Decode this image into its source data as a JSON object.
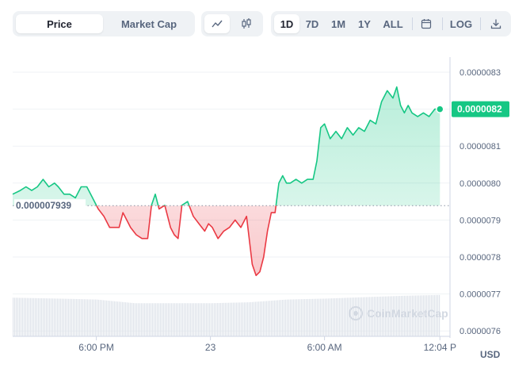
{
  "toolbar": {
    "price_tab": "Price",
    "market_cap_tab": "Market Cap",
    "chart_type_icons": [
      "line-chart-icon",
      "candlestick-icon"
    ],
    "ranges": [
      "1D",
      "7D",
      "1M",
      "1Y",
      "ALL"
    ],
    "active_range": "1D",
    "calendar_icon": "calendar-icon",
    "log_label": "LOG",
    "download_icon": "download-icon"
  },
  "watermark": "CoinMarketCap",
  "currency_label": "USD",
  "colors": {
    "up": "#16c784",
    "down": "#ea3943",
    "accent": "#16c784"
  },
  "chart_data": {
    "type": "line",
    "baseline_label": "0.000007939",
    "baseline": 7.939e-06,
    "last_price_label": "0.0000082",
    "last_price": 8.2e-06,
    "y_ticks": [
      "0.0000083",
      "0.0000082",
      "0.0000081",
      "0.0000080",
      "0.0000079",
      "0.0000078",
      "0.0000077",
      "0.0000076"
    ],
    "ylim": [
      7.56e-06,
      8.35e-06
    ],
    "x_ticks": [
      "6:00 PM",
      "23",
      "6:00 AM",
      "12:04 P"
    ],
    "x_tick_hours": [
      18,
      24,
      30,
      36.07
    ],
    "xlim": [
      13.6,
      36.6
    ],
    "grid": true,
    "price_series": {
      "x": [
        13.6,
        14.0,
        14.3,
        14.6,
        14.9,
        15.2,
        15.5,
        15.8,
        16.0,
        16.3,
        16.6,
        16.9,
        17.2,
        17.5,
        17.8,
        18.1,
        18.4,
        18.7,
        19.0,
        19.2,
        19.4,
        19.6,
        19.8,
        20.1,
        20.4,
        20.7,
        20.9,
        21.1,
        21.3,
        21.6,
        21.9,
        22.1,
        22.3,
        22.5,
        22.8,
        23.1,
        23.4,
        23.7,
        23.9,
        24.1,
        24.4,
        24.7,
        25.0,
        25.3,
        25.6,
        25.9,
        26.2,
        26.4,
        26.6,
        26.8,
        27.0,
        27.2,
        27.4,
        27.6,
        27.8,
        28.0,
        28.2,
        28.5,
        28.8,
        29.1,
        29.4,
        29.6,
        29.8,
        30.0,
        30.3,
        30.6,
        30.9,
        31.2,
        31.5,
        31.8,
        32.1,
        32.4,
        32.7,
        33.0,
        33.3,
        33.6,
        33.8,
        34.0,
        34.2,
        34.4,
        34.6,
        34.9,
        35.2,
        35.5,
        35.8,
        36.07
      ],
      "y": [
        7.97e-06,
        7.98e-06,
        7.99e-06,
        7.98e-06,
        7.99e-06,
        8.01e-06,
        7.99e-06,
        8e-06,
        7.99e-06,
        7.97e-06,
        7.97e-06,
        7.96e-06,
        7.99e-06,
        7.99e-06,
        7.96e-06,
        7.93e-06,
        7.91e-06,
        7.88e-06,
        7.88e-06,
        7.88e-06,
        7.92e-06,
        7.9e-06,
        7.88e-06,
        7.86e-06,
        7.85e-06,
        7.85e-06,
        7.94e-06,
        7.97e-06,
        7.93e-06,
        7.94e-06,
        7.88e-06,
        7.86e-06,
        7.85e-06,
        7.94e-06,
        7.95e-06,
        7.91e-06,
        7.89e-06,
        7.87e-06,
        7.89e-06,
        7.88e-06,
        7.85e-06,
        7.87e-06,
        7.88e-06,
        7.9e-06,
        7.88e-06,
        7.91e-06,
        7.78e-06,
        7.75e-06,
        7.76e-06,
        7.8e-06,
        7.87e-06,
        7.92e-06,
        7.92e-06,
        8e-06,
        8.02e-06,
        8e-06,
        8e-06,
        8.01e-06,
        8e-06,
        8.01e-06,
        8.01e-06,
        8.06e-06,
        8.15e-06,
        8.16e-06,
        8.12e-06,
        8.14e-06,
        8.12e-06,
        8.15e-06,
        8.13e-06,
        8.15e-06,
        8.14e-06,
        8.17e-06,
        8.16e-06,
        8.22e-06,
        8.25e-06,
        8.23e-06,
        8.26e-06,
        8.21e-06,
        8.19e-06,
        8.21e-06,
        8.19e-06,
        8.18e-06,
        8.19e-06,
        8.18e-06,
        8.2e-06,
        8.2e-06
      ]
    },
    "volume_series": {
      "x": [
        13.6,
        16.0,
        18.0,
        20.0,
        22.0,
        24.0,
        26.0,
        28.0,
        30.0,
        32.0,
        34.0,
        36.07
      ],
      "relative": [
        0.84,
        0.82,
        0.8,
        0.72,
        0.72,
        0.72,
        0.74,
        0.8,
        0.82,
        0.85,
        0.88,
        0.9
      ]
    }
  }
}
